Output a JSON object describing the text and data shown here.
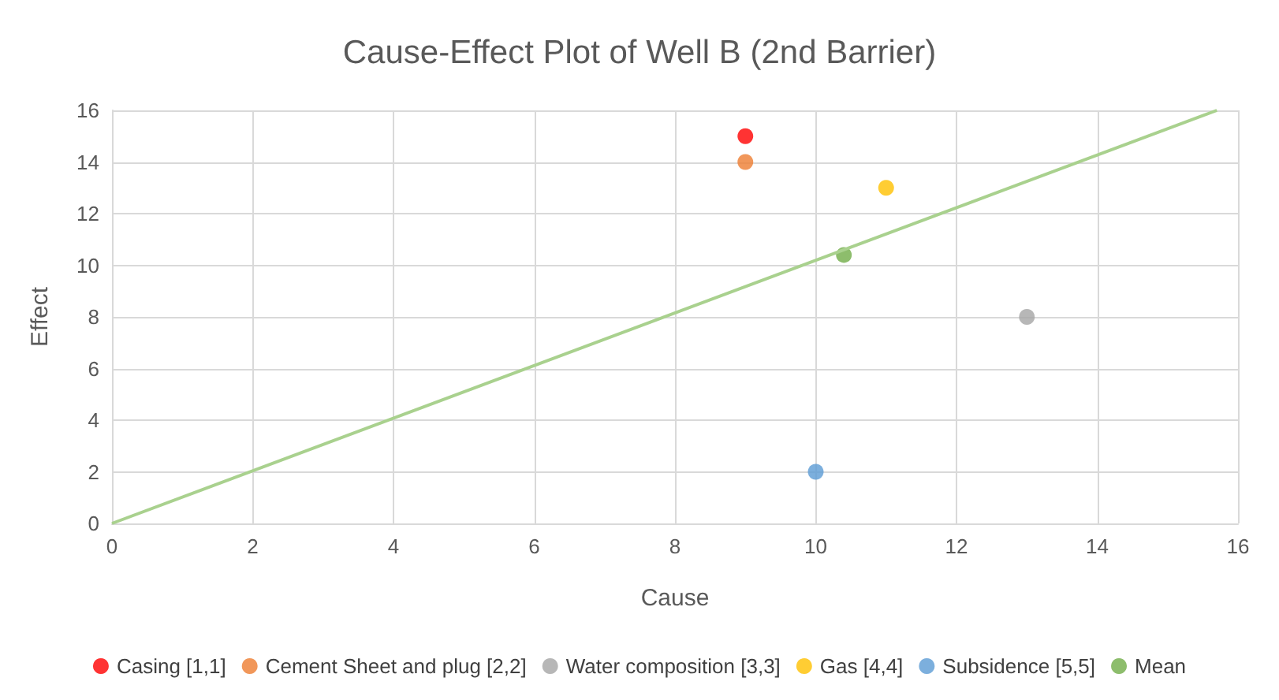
{
  "chart_data": {
    "type": "scatter",
    "title": "Cause-Effect Plot of Well B (2nd Barrier)",
    "xlabel": "Cause",
    "ylabel": "Effect",
    "xlim": [
      0,
      16
    ],
    "xticks": [
      0,
      2,
      4,
      6,
      8,
      10,
      12,
      14,
      16
    ],
    "ylim": [
      0,
      16
    ],
    "yticks": [
      0,
      2,
      4,
      6,
      8,
      10,
      12,
      14,
      16
    ],
    "grid": true,
    "legend": "bottom",
    "marker": "circle",
    "series": [
      {
        "name": "Casing [1,1]",
        "color": "#ff0000",
        "x": [
          9
        ],
        "values": [
          15
        ]
      },
      {
        "name": "Cement Sheet and plug [2,2]",
        "color": "#ed7d31",
        "x": [
          9
        ],
        "values": [
          14
        ]
      },
      {
        "name": "Water composition [3,3]",
        "color": "#a5a5a5",
        "x": [
          13
        ],
        "values": [
          8
        ]
      },
      {
        "name": "Gas [4,4]",
        "color": "#ffc000",
        "x": [
          11
        ],
        "values": [
          13
        ]
      },
      {
        "name": "Subsidence [5,5]",
        "color": "#5b9bd5",
        "x": [
          10
        ],
        "values": [
          2
        ]
      },
      {
        "name": "Mean",
        "color": "#70ad47",
        "x": [
          10.4
        ],
        "values": [
          10.4
        ]
      },
      {
        "type": "line",
        "color": "#a9d18e",
        "x": [
          0,
          15.7
        ],
        "values": [
          0,
          16
        ],
        "marker": "none",
        "line_style": "solid"
      }
    ]
  }
}
